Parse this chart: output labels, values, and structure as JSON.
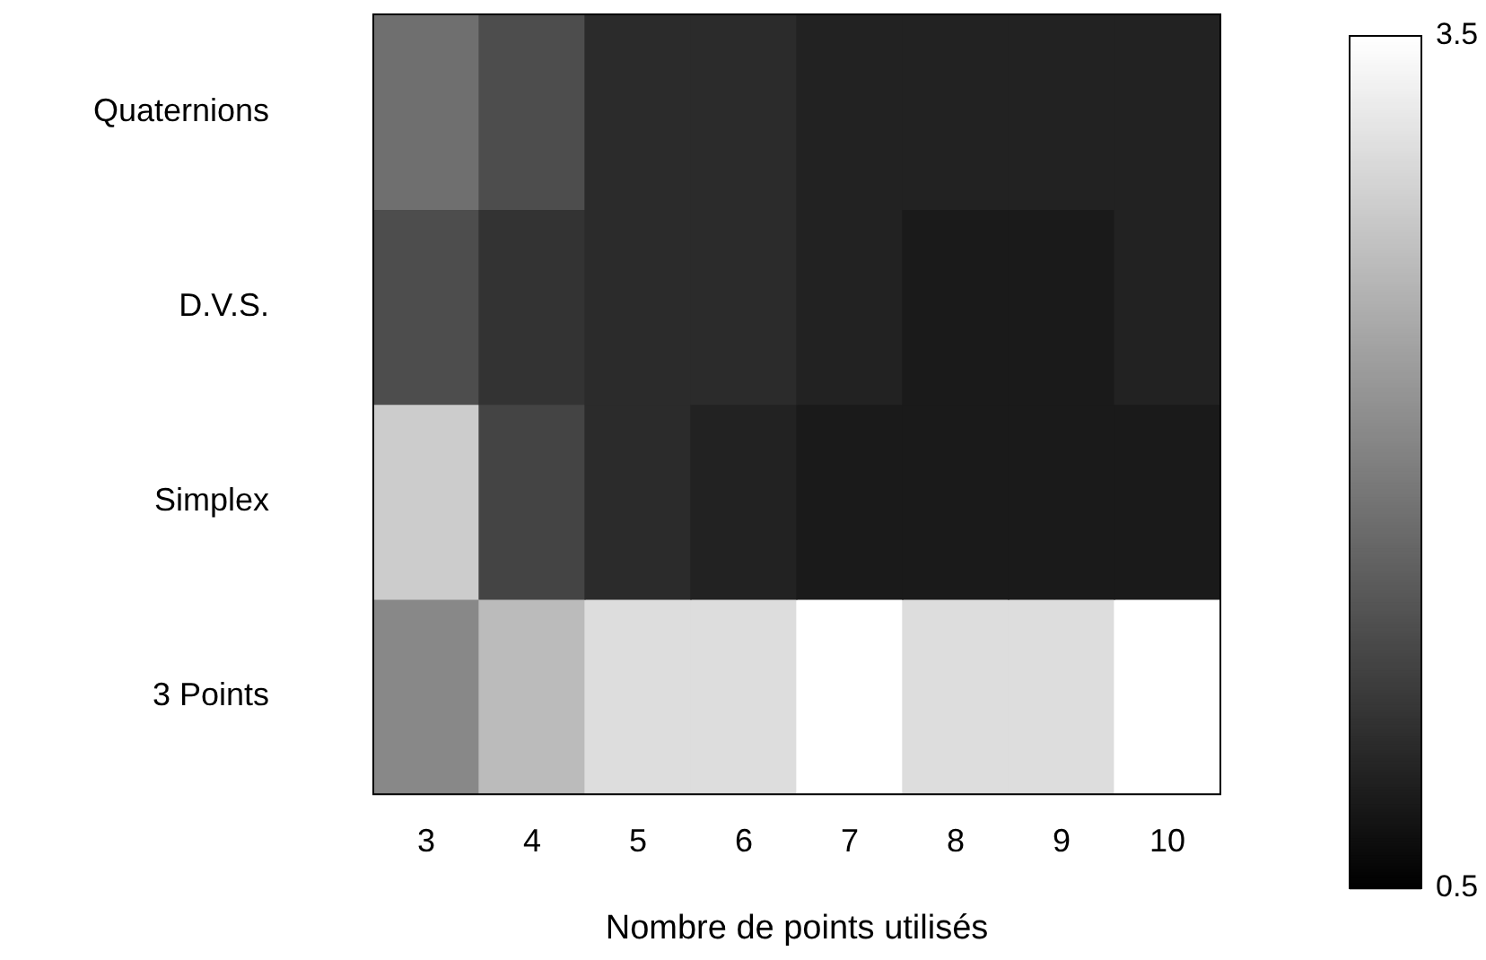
{
  "chart_data": {
    "type": "heatmap",
    "xlabel": "Nombre de points utilisés",
    "categories": [
      "3",
      "4",
      "5",
      "6",
      "7",
      "8",
      "9",
      "10"
    ],
    "y_categories": [
      "Quaternions",
      "D.V.S.",
      "Simplex",
      "3 Points"
    ],
    "cells": [
      [
        1.8,
        1.4,
        1.0,
        1.0,
        0.9,
        0.9,
        0.9,
        0.9
      ],
      [
        1.4,
        1.1,
        1.0,
        1.0,
        0.9,
        0.8,
        0.8,
        0.9
      ],
      [
        2.9,
        1.3,
        1.0,
        0.9,
        0.8,
        0.8,
        0.8,
        0.8
      ],
      [
        2.1,
        2.7,
        3.1,
        3.1,
        3.5,
        3.1,
        3.1,
        3.5
      ]
    ],
    "clim": [
      0.5,
      3.5
    ],
    "cticks": [
      0.5,
      3.5
    ]
  }
}
